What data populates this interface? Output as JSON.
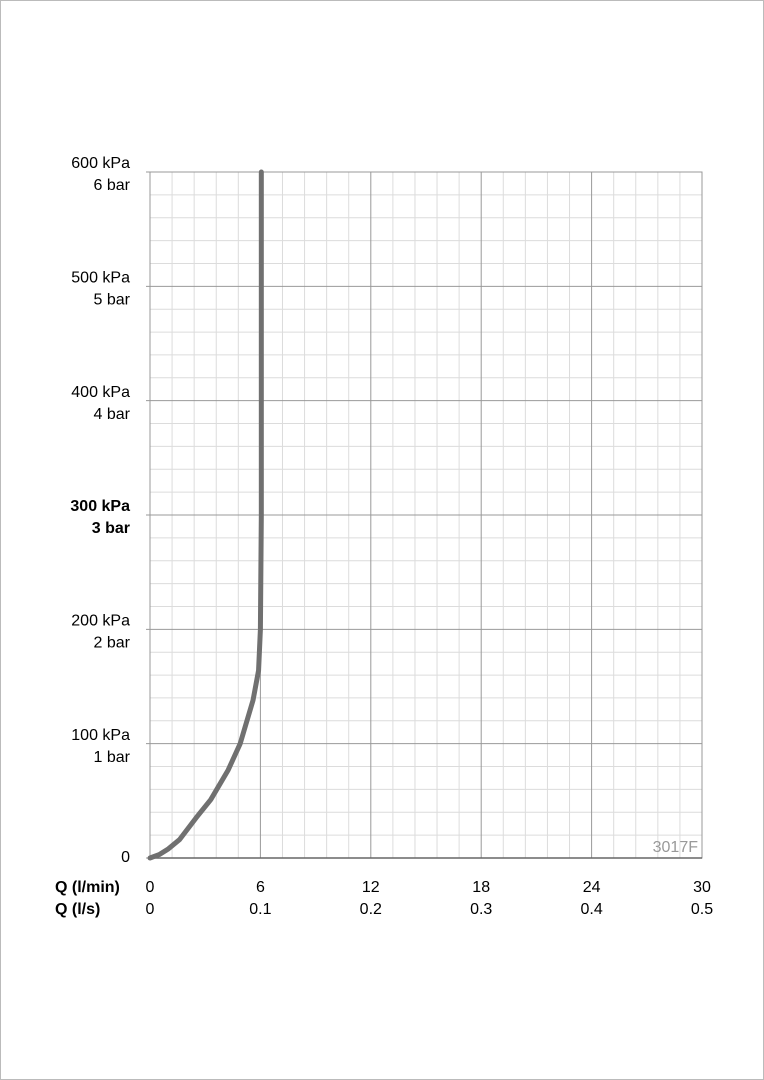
{
  "chart_data": {
    "type": "line",
    "x": [
      0,
      0.5,
      1,
      1.6,
      2.5,
      3.3,
      4.25,
      4.9,
      5.6,
      5.9,
      6,
      6.05,
      6.05
    ],
    "values": [
      0,
      3,
      8,
      16,
      35,
      51,
      77,
      100,
      138,
      164,
      200,
      300,
      600
    ],
    "color": "#707070",
    "xlim": [
      0,
      30
    ],
    "xticks": [
      0,
      6,
      12,
      18,
      24,
      30
    ],
    "xlabel": "Q (l/min)",
    "x2lim": [
      0,
      0.5
    ],
    "x2ticks": [
      0,
      0.1,
      0.2,
      0.3,
      0.4,
      0.5
    ],
    "x2label": "Q (l/s)",
    "ylim": [
      0,
      600
    ],
    "yticks": [
      0,
      {
        "value": 100,
        "label": "100 kPa"
      },
      {
        "value": 200,
        "label": "200 kPa"
      },
      {
        "value": 300,
        "label": "300 kPa",
        "bold": true
      },
      {
        "value": 400,
        "label": "400 kPa"
      },
      {
        "value": 500,
        "label": "500 kPa"
      },
      {
        "value": 600,
        "label": "600 kPa"
      }
    ],
    "y2lim": [
      0,
      6
    ],
    "y2ticks": [
      {
        "value": 1,
        "label": "1 bar"
      },
      {
        "value": 2,
        "label": "2 bar"
      },
      {
        "value": 3,
        "label": "3 bar",
        "bold": true
      },
      {
        "value": 4,
        "label": "4 bar"
      },
      {
        "value": 5,
        "label": "5 bar"
      },
      {
        "value": 6,
        "label": "6 bar"
      }
    ],
    "grid": true,
    "minor_divisions": 5,
    "annotation": "3017F"
  }
}
